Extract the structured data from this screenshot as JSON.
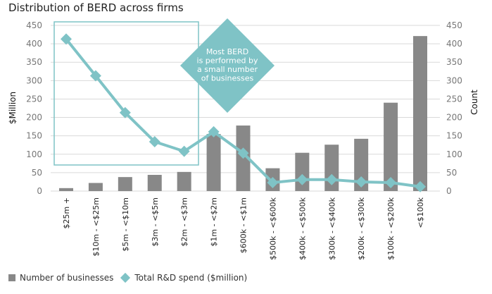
{
  "chart_data": {
    "type": "bar+line",
    "title": "Distribution of BERD across firms",
    "categories": [
      "$25m +",
      "$10m - <$25m",
      "$5m - <$10m",
      "$3m - <$5m",
      "$2m - <$3m",
      "$1m - <$2m",
      "$600k - <$1m",
      "$500k - <$600k",
      "$400k - <$500k",
      "$300k - <$400k",
      "$200k - <$300k",
      "$100k - <$200k",
      "<$100k"
    ],
    "series": [
      {
        "name": "Number of businesses",
        "type": "bar",
        "axis": "right",
        "color": "#888888",
        "values": [
          8,
          22,
          38,
          44,
          52,
          155,
          178,
          62,
          104,
          126,
          142,
          240,
          421
        ]
      },
      {
        "name": "Total R&D spend ($million)",
        "type": "line",
        "axis": "left",
        "color": "#7fc3c6",
        "values": [
          413,
          313,
          213,
          134,
          108,
          161,
          103,
          23,
          31,
          31,
          25,
          23,
          12
        ]
      }
    ],
    "ylabel_left": "$Million",
    "ylabel_right": "Count",
    "ylim": [
      0,
      450
    ],
    "yticks": [
      0,
      50,
      100,
      150,
      200,
      250,
      300,
      350,
      400,
      450
    ],
    "grid": true,
    "legend": "bottom-left",
    "annotation": "Most BERD is performed by a small number of businesses",
    "annotation_lines": [
      "Most BERD",
      "is performed by",
      "a small number",
      "of businesses"
    ]
  }
}
